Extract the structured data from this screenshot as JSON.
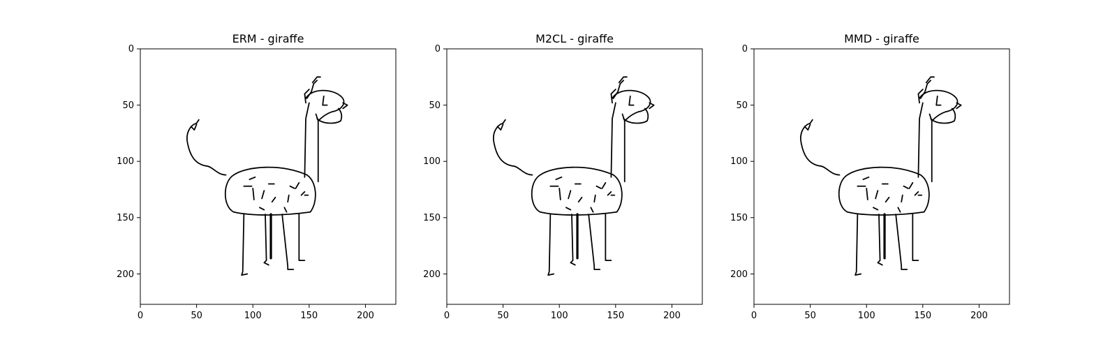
{
  "figure": {
    "panels": [
      {
        "title": "ERM - giraffe",
        "x_ticks": [
          "0",
          "50",
          "100",
          "150",
          "200"
        ],
        "y_ticks": [
          "0",
          "50",
          "100",
          "150",
          "200"
        ]
      },
      {
        "title": "M2CL - giraffe",
        "x_ticks": [
          "0",
          "50",
          "100",
          "150",
          "200"
        ],
        "y_ticks": [
          "0",
          "50",
          "100",
          "150",
          "200"
        ]
      },
      {
        "title": "MMD - giraffe",
        "x_ticks": [
          "0",
          "50",
          "100",
          "150",
          "200"
        ],
        "y_ticks": [
          "0",
          "50",
          "100",
          "150",
          "200"
        ]
      }
    ],
    "image_extent": [
      0,
      227
    ],
    "colors": {
      "stroke": "#000000",
      "background": "#ffffff"
    }
  }
}
